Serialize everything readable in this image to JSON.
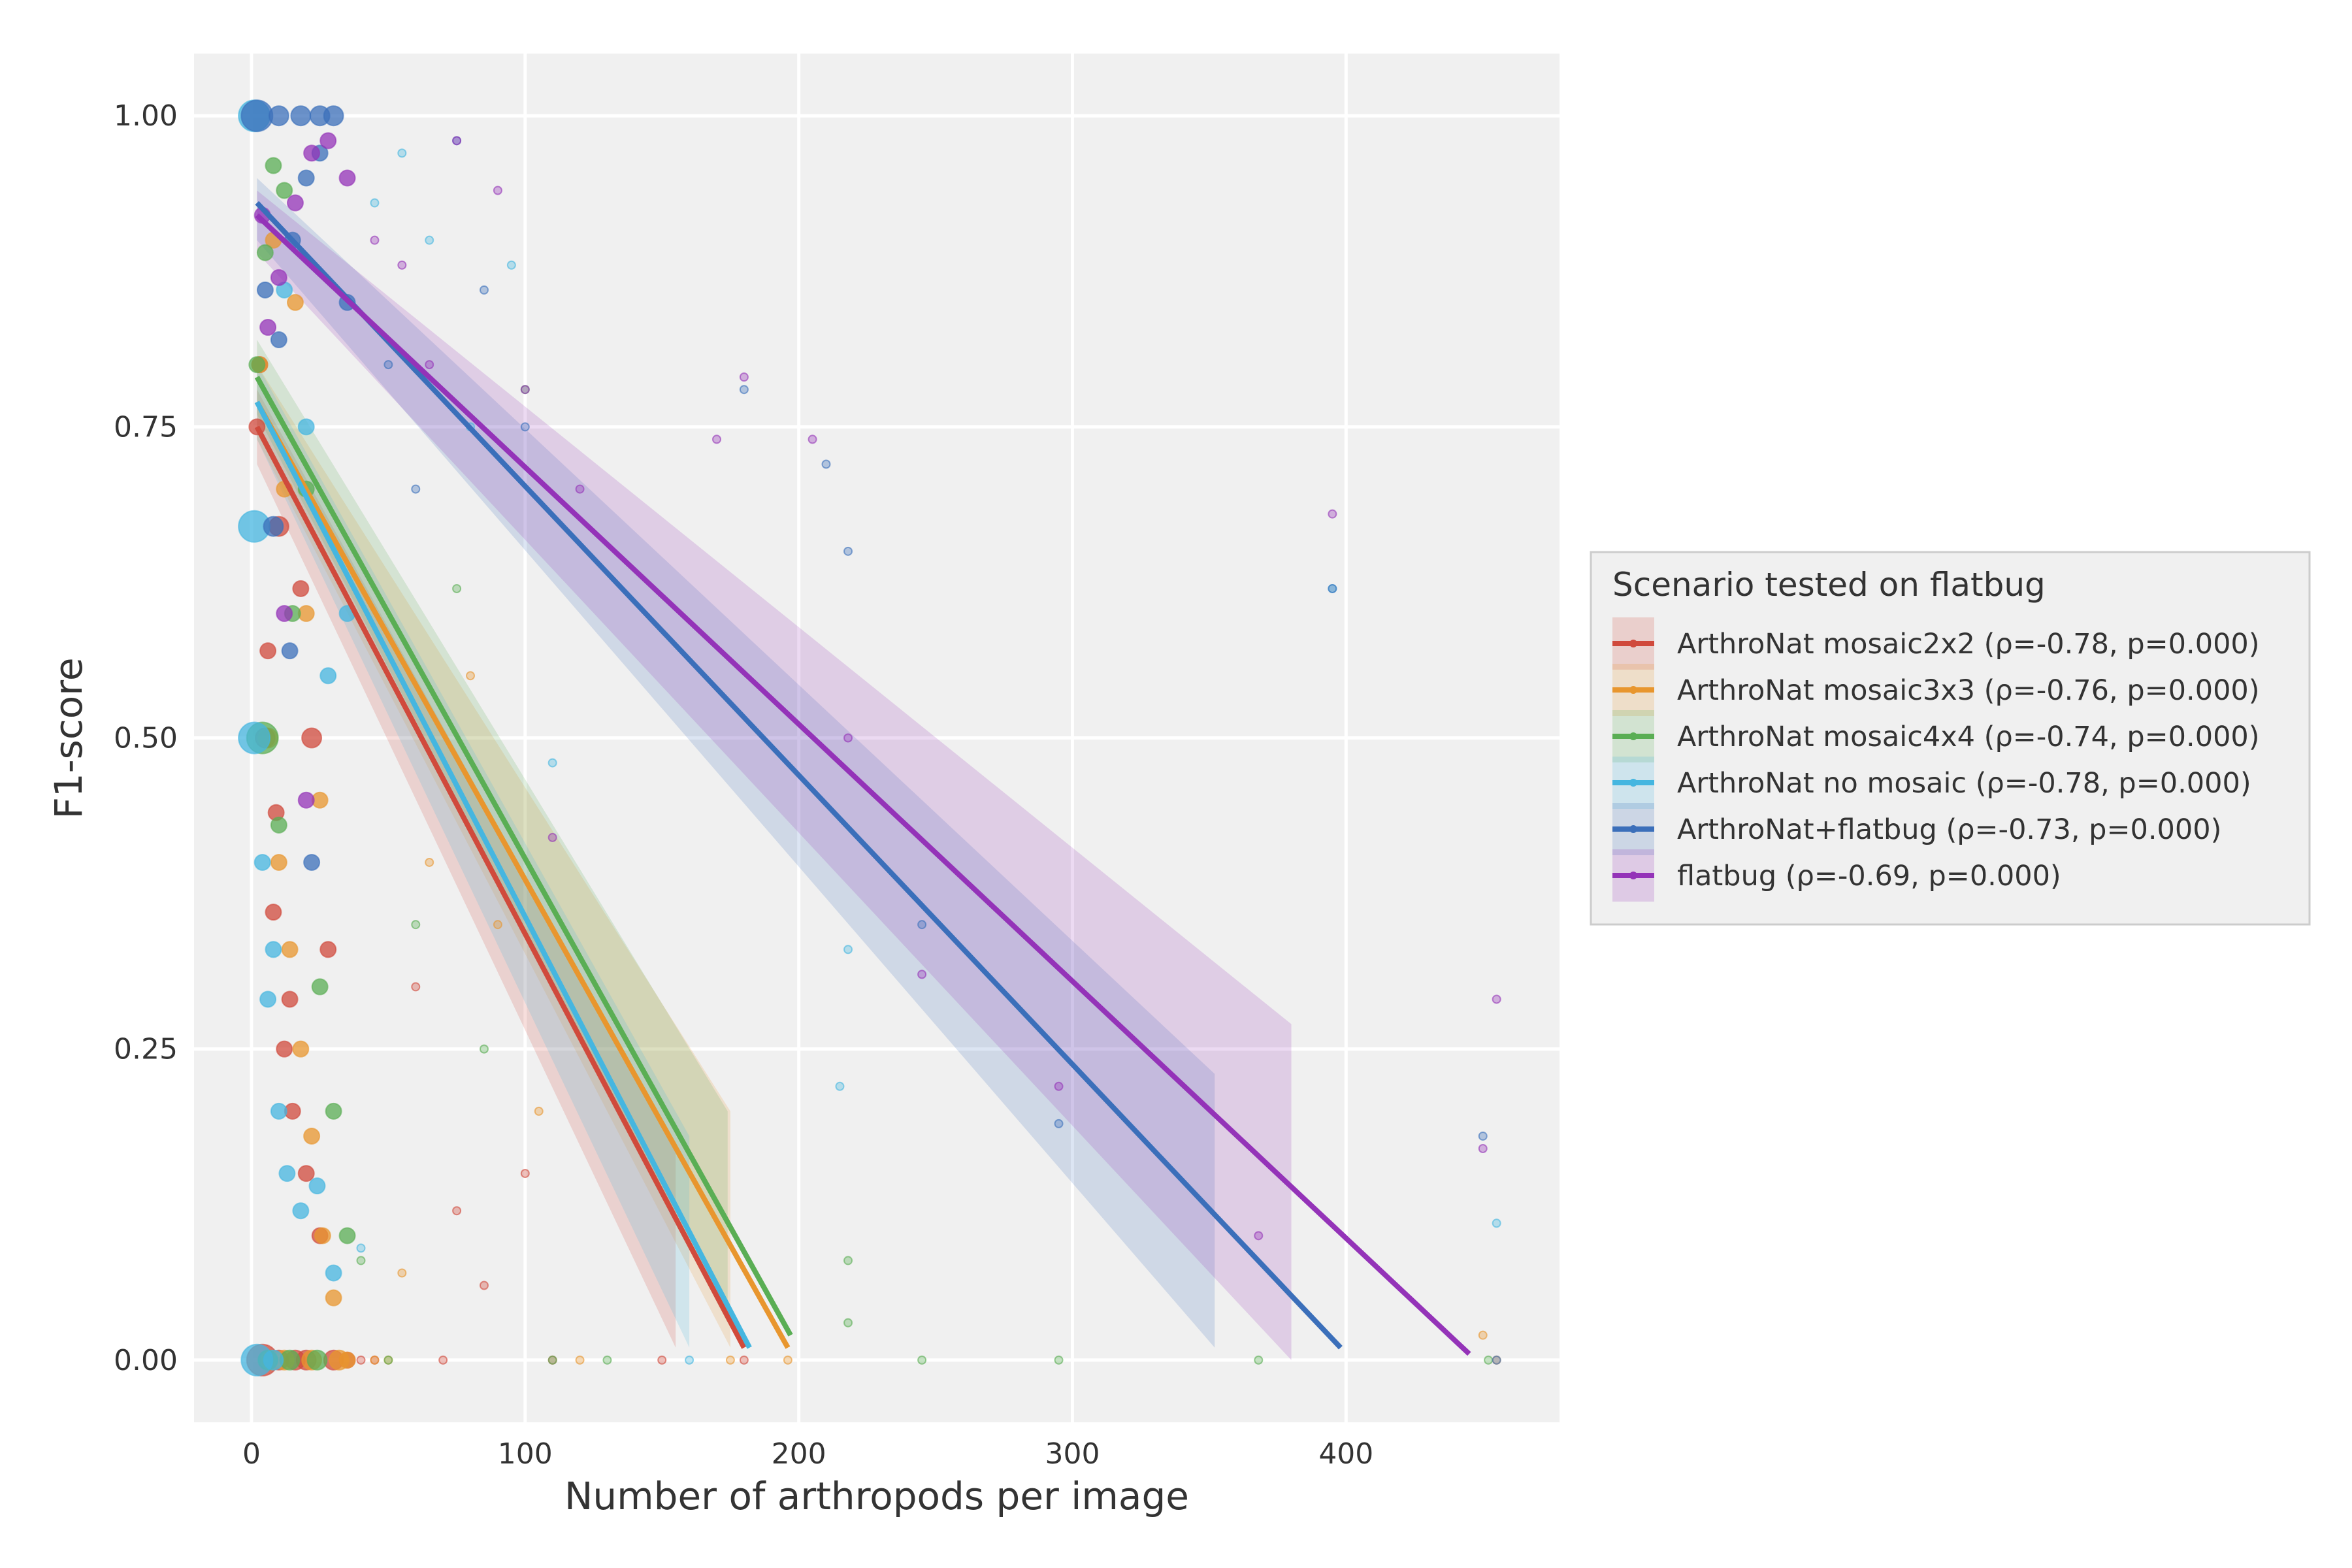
{
  "chart_data": {
    "type": "scatter",
    "title": "",
    "xlabel": "Number of arthropods per image",
    "ylabel": "F1-score",
    "xlim": [
      -21,
      478
    ],
    "ylim": [
      -0.05,
      1.05
    ],
    "xticks": [
      0,
      100,
      200,
      300,
      400
    ],
    "yticks": [
      0.0,
      0.25,
      0.5,
      0.75,
      1.0
    ],
    "xtick_labels": [
      "0",
      "100",
      "200",
      "300",
      "400"
    ],
    "ytick_labels": [
      "0.00",
      "0.25",
      "0.50",
      "0.75",
      "1.00"
    ],
    "grid": true,
    "legend": {
      "title": "Scenario tested on flatbug",
      "placement": "right"
    },
    "series": [
      {
        "name": "ArthroNat mosaic2x2 (ρ=-0.78, p=0.000)",
        "color": "#d04a3c",
        "fit": {
          "x": [
            2,
            180
          ],
          "y": [
            0.75,
            0.01
          ]
        },
        "band": {
          "x": [
            2,
            155
          ],
          "upper": [
            0.78,
            0.17
          ],
          "lower": [
            0.72,
            0.01
          ]
        },
        "points": [
          [
            2,
            0.75
          ],
          [
            5,
            0.5
          ],
          [
            8,
            0.36
          ],
          [
            12,
            0.25
          ],
          [
            15,
            0.2
          ],
          [
            20,
            0.15
          ],
          [
            25,
            0.1
          ],
          [
            30,
            0.0
          ],
          [
            35,
            0.0
          ],
          [
            40,
            0.0
          ],
          [
            45,
            0.0
          ],
          [
            10,
            0.67
          ],
          [
            18,
            0.62
          ],
          [
            22,
            0.5
          ],
          [
            28,
            0.33
          ],
          [
            3,
            0.8
          ],
          [
            6,
            0.57
          ],
          [
            9,
            0.44
          ],
          [
            14,
            0.29
          ],
          [
            60,
            0.3
          ],
          [
            70,
            0.0
          ],
          [
            75,
            0.12
          ],
          [
            85,
            0.06
          ],
          [
            100,
            0.15
          ],
          [
            110,
            0.0
          ],
          [
            150,
            0.0
          ],
          [
            180,
            0.0
          ],
          [
            4,
            0.0
          ],
          [
            10,
            0.0
          ],
          [
            16,
            0.0
          ],
          [
            20,
            0.0
          ]
        ]
      },
      {
        "name": "ArthroNat mosaic3x3 (ρ=-0.76, p=0.000)",
        "color": "#e8962e",
        "fit": {
          "x": [
            2,
            196
          ],
          "y": [
            0.77,
            0.01
          ]
        },
        "band": {
          "x": [
            2,
            175
          ],
          "upper": [
            0.8,
            0.2
          ],
          "lower": [
            0.74,
            0.01
          ]
        },
        "points": [
          [
            3,
            0.8
          ],
          [
            6,
            0.5
          ],
          [
            10,
            0.4
          ],
          [
            14,
            0.33
          ],
          [
            18,
            0.25
          ],
          [
            22,
            0.18
          ],
          [
            26,
            0.1
          ],
          [
            30,
            0.05
          ],
          [
            35,
            0.0
          ],
          [
            45,
            0.0
          ],
          [
            55,
            0.07
          ],
          [
            12,
            0.7
          ],
          [
            20,
            0.6
          ],
          [
            25,
            0.45
          ],
          [
            8,
            0.9
          ],
          [
            16,
            0.85
          ],
          [
            65,
            0.4
          ],
          [
            80,
            0.55
          ],
          [
            90,
            0.35
          ],
          [
            105,
            0.2
          ],
          [
            120,
            0.0
          ],
          [
            175,
            0.0
          ],
          [
            196,
            0.0
          ],
          [
            450,
            0.02
          ],
          [
            455,
            0.0
          ],
          [
            7,
            0.0
          ],
          [
            12,
            0.0
          ],
          [
            22,
            0.0
          ],
          [
            32,
            0.0
          ],
          [
            50,
            0.0
          ]
        ]
      },
      {
        "name": "ArthroNat mosaic4x4 (ρ=-0.74, p=0.000)",
        "color": "#5aae54",
        "fit": {
          "x": [
            2,
            197
          ],
          "y": [
            0.79,
            0.02
          ]
        },
        "band": {
          "x": [
            2,
            174
          ],
          "upper": [
            0.82,
            0.2
          ],
          "lower": [
            0.76,
            0.03
          ]
        },
        "points": [
          [
            2,
            0.8
          ],
          [
            5,
            0.89
          ],
          [
            8,
            0.96
          ],
          [
            12,
            0.94
          ],
          [
            4,
            0.5
          ],
          [
            10,
            0.43
          ],
          [
            15,
            0.6
          ],
          [
            20,
            0.7
          ],
          [
            25,
            0.3
          ],
          [
            30,
            0.2
          ],
          [
            35,
            0.1
          ],
          [
            40,
            0.08
          ],
          [
            50,
            0.0
          ],
          [
            60,
            0.35
          ],
          [
            75,
            0.62
          ],
          [
            85,
            0.25
          ],
          [
            100,
            0.78
          ],
          [
            110,
            0.0
          ],
          [
            130,
            0.0
          ],
          [
            218,
            0.08
          ],
          [
            218,
            0.03
          ],
          [
            245,
            0.0
          ],
          [
            295,
            0.0
          ],
          [
            368,
            0.0
          ],
          [
            452,
            0.0
          ],
          [
            6,
            0.0
          ],
          [
            14,
            0.0
          ],
          [
            24,
            0.0
          ]
        ]
      },
      {
        "name": "ArthroNat no mosaic (ρ=-0.78, p=0.000)",
        "color": "#45b6e0",
        "fit": {
          "x": [
            2,
            182
          ],
          "y": [
            0.77,
            0.01
          ]
        },
        "band": {
          "x": [
            2,
            160
          ],
          "upper": [
            0.8,
            0.18
          ],
          "lower": [
            0.74,
            0.01
          ]
        },
        "points": [
          [
            1,
            1.0
          ],
          [
            1,
            0.67
          ],
          [
            1,
            0.5
          ],
          [
            4,
            0.4
          ],
          [
            8,
            0.33
          ],
          [
            6,
            0.29
          ],
          [
            10,
            0.2
          ],
          [
            13,
            0.15
          ],
          [
            18,
            0.12
          ],
          [
            24,
            0.14
          ],
          [
            30,
            0.07
          ],
          [
            40,
            0.09
          ],
          [
            2,
            0.0
          ],
          [
            8,
            0.0
          ],
          [
            12,
            0.86
          ],
          [
            20,
            0.75
          ],
          [
            28,
            0.55
          ],
          [
            35,
            0.6
          ],
          [
            45,
            0.93
          ],
          [
            55,
            0.97
          ],
          [
            65,
            0.9
          ],
          [
            80,
            0.75
          ],
          [
            95,
            0.88
          ],
          [
            110,
            0.48
          ],
          [
            160,
            0.0
          ],
          [
            215,
            0.22
          ],
          [
            218,
            0.33
          ],
          [
            395,
            0.62
          ],
          [
            455,
            0.11
          ]
        ]
      },
      {
        "name": "ArthroNat+flatbug (ρ=-0.73, p=0.000)",
        "color": "#3b6fba",
        "fit": {
          "x": [
            2,
            398
          ],
          "y": [
            0.93,
            0.01
          ]
        },
        "band": {
          "x": [
            2,
            352
          ],
          "upper": [
            0.95,
            0.23
          ],
          "lower": [
            0.9,
            0.01
          ]
        },
        "points": [
          [
            2,
            1.0
          ],
          [
            10,
            1.0
          ],
          [
            18,
            1.0
          ],
          [
            25,
            1.0
          ],
          [
            30,
            1.0
          ],
          [
            5,
            0.86
          ],
          [
            10,
            0.82
          ],
          [
            15,
            0.9
          ],
          [
            20,
            0.95
          ],
          [
            25,
            0.97
          ],
          [
            8,
            0.67
          ],
          [
            14,
            0.57
          ],
          [
            22,
            0.4
          ],
          [
            35,
            0.85
          ],
          [
            50,
            0.8
          ],
          [
            60,
            0.7
          ],
          [
            75,
            0.98
          ],
          [
            85,
            0.86
          ],
          [
            100,
            0.75
          ],
          [
            180,
            0.78
          ],
          [
            210,
            0.72
          ],
          [
            218,
            0.65
          ],
          [
            245,
            0.35
          ],
          [
            295,
            0.19
          ],
          [
            395,
            0.62
          ],
          [
            450,
            0.18
          ],
          [
            455,
            0.0
          ]
        ]
      },
      {
        "name": "flatbug (ρ=-0.69, p=0.000)",
        "color": "#9433b8",
        "fit": {
          "x": [
            2,
            445
          ],
          "y": [
            0.92,
            0.005
          ]
        },
        "band": {
          "x": [
            2,
            380
          ],
          "upper": [
            0.94,
            0.27
          ],
          "lower": [
            0.89,
            0.0
          ]
        },
        "points": [
          [
            6,
            0.83
          ],
          [
            10,
            0.87
          ],
          [
            16,
            0.93
          ],
          [
            22,
            0.97
          ],
          [
            28,
            0.98
          ],
          [
            35,
            0.95
          ],
          [
            45,
            0.9
          ],
          [
            55,
            0.88
          ],
          [
            65,
            0.8
          ],
          [
            75,
            0.98
          ],
          [
            90,
            0.94
          ],
          [
            100,
            0.78
          ],
          [
            110,
            0.42
          ],
          [
            120,
            0.7
          ],
          [
            170,
            0.74
          ],
          [
            180,
            0.79
          ],
          [
            205,
            0.74
          ],
          [
            218,
            0.5
          ],
          [
            245,
            0.31
          ],
          [
            295,
            0.22
          ],
          [
            368,
            0.1
          ],
          [
            395,
            0.68
          ],
          [
            450,
            0.17
          ],
          [
            455,
            0.29
          ],
          [
            4,
            0.92
          ],
          [
            12,
            0.6
          ],
          [
            20,
            0.45
          ]
        ]
      }
    ]
  }
}
